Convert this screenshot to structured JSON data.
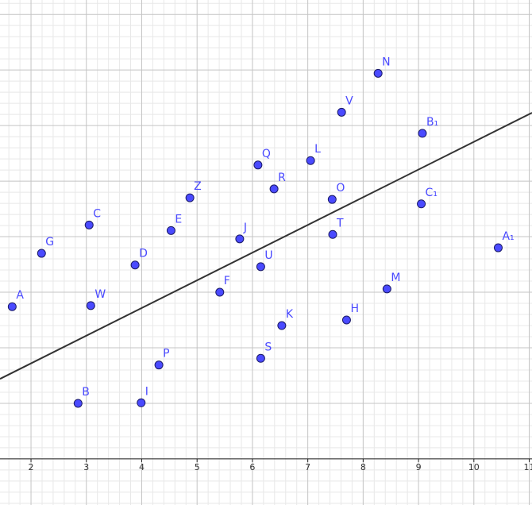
{
  "chart_data": {
    "type": "scatter",
    "xlim": [
      1.44,
      11.05
    ],
    "ylim": [
      -0.83,
      8.26
    ],
    "xticks": [
      2,
      3,
      4,
      5,
      6,
      7,
      8,
      9,
      10,
      11
    ],
    "grid": true,
    "color": "#4a4aff",
    "labels": [
      "A",
      "B",
      "C",
      "D",
      "E",
      "F",
      "G",
      "H",
      "I",
      "J",
      "K",
      "L",
      "M",
      "N",
      "O",
      "P",
      "Q",
      "R",
      "S",
      "T",
      "U",
      "V",
      "W",
      "Z",
      "A₁",
      "B₁",
      "C₁"
    ],
    "x": [
      1.66,
      2.85,
      3.05,
      3.88,
      4.53,
      5.41,
      2.19,
      7.7,
      3.99,
      5.77,
      6.53,
      7.05,
      8.43,
      8.27,
      7.44,
      4.31,
      6.1,
      6.39,
      6.15,
      7.45,
      6.15,
      7.61,
      3.08,
      4.87,
      10.44,
      9.07,
      9.05
    ],
    "values": [
      2.74,
      1.0,
      4.21,
      3.49,
      4.11,
      3.0,
      3.7,
      2.5,
      1.01,
      3.96,
      2.4,
      5.37,
      3.06,
      6.94,
      4.67,
      1.69,
      5.29,
      4.86,
      1.81,
      4.04,
      3.46,
      6.24,
      2.76,
      4.7,
      3.8,
      5.86,
      4.59
    ],
    "fit_line": {
      "x": [
        1.44,
        11.05
      ],
      "y": [
        1.44,
        6.23
      ],
      "color": "#333333"
    }
  }
}
